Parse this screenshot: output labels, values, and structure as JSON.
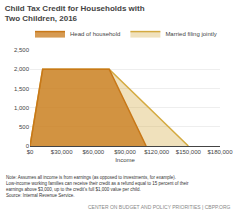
{
  "chart_data": {
    "type": "area",
    "title": "Child Tax Credit for Households with\nTwo Children, 2016",
    "x_label": "Income",
    "series": [
      {
        "name": "Head of household",
        "color": "#C87818",
        "x": [
          0,
          12000,
          75000,
          110000
        ],
        "values": [
          0,
          2000,
          2000,
          0
        ]
      },
      {
        "name": "Married filing jointly",
        "color": "#D4AA40",
        "x": [
          0,
          12000,
          75000,
          150000
        ],
        "values": [
          0,
          2000,
          2000,
          0
        ]
      }
    ],
    "xlim": [
      0,
      180000
    ],
    "xticks": [
      {
        "value": 0,
        "label": "$0"
      },
      {
        "value": 30000,
        "label": "$30,000"
      },
      {
        "value": 60000,
        "label": "$60,000"
      },
      {
        "value": 90000,
        "label": "$90,000"
      },
      {
        "value": 120000,
        "label": "$120,000"
      },
      {
        "value": 150000,
        "label": "$150,000"
      },
      {
        "value": 180000,
        "label": "$180,000"
      }
    ],
    "ylim": [
      0,
      2500
    ],
    "yticks": [
      0,
      500,
      {
        "value": 1000,
        "label": "1,000"
      },
      {
        "value": 1500,
        "label": "1,500"
      },
      {
        "value": 2000,
        "label": "2,000"
      },
      {
        "value": 2500,
        "label": "2,500"
      }
    ],
    "grid": true,
    "legend": "top left",
    "annotations": [
      "Note: Assumes all income is from earnings (as opposed to investments, for example).\nLow-income working families can receive their credit as a refund equal to 15 percent of their\nearnings above $3,000, up to the credit's full $1,000 value per child.\nSource: Internal Revenue Service.",
      "CENTER ON BUDGET AND POLICY PRIORITIES | CBPP.ORG"
    ]
  }
}
